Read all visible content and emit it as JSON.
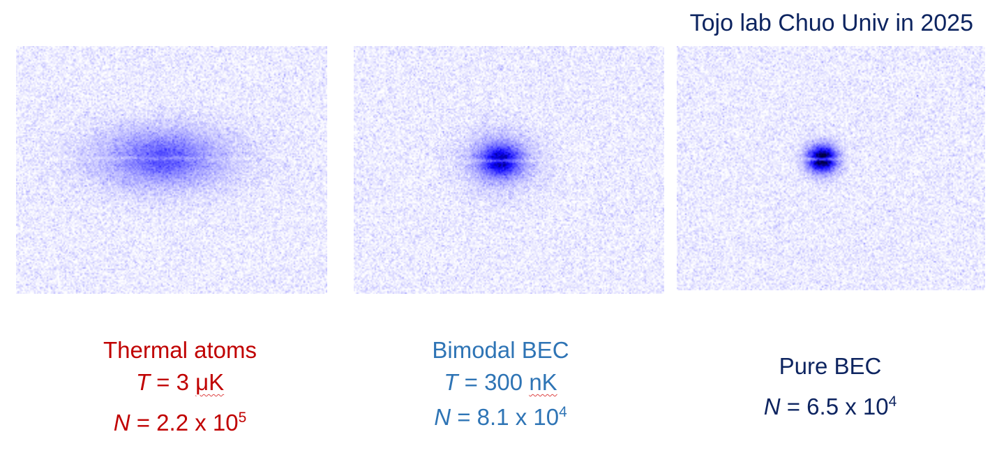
{
  "header": {
    "credit": "Tojo lab Chuo Univ in 2025"
  },
  "panels": [
    {
      "id": "thermal",
      "title": "Thermal atoms",
      "t_symbol": "T",
      "t_value": " = 3 ",
      "t_unit": "μK",
      "n_symbol": "N",
      "n_mantissa": " = 2.2 x 10",
      "n_exponent": "5",
      "color": "#c00000"
    },
    {
      "id": "bimodal",
      "title": "Bimodal BEC",
      "t_symbol": "T",
      "t_value": " = 300 ",
      "t_unit": "nK",
      "n_symbol": "N",
      "n_mantissa": " = 8.1 x 10",
      "n_exponent": "4",
      "color": "#2e74b5"
    },
    {
      "id": "pure",
      "title": "Pure BEC",
      "n_symbol": "N",
      "n_mantissa": " = 6.5 x 10",
      "n_exponent": "4",
      "color": "#0d2460"
    }
  ],
  "colors": {
    "image_low": "#ffffff",
    "image_mid": "#6b6bff",
    "image_high": "#0000c8",
    "image_peak": "#000040"
  }
}
